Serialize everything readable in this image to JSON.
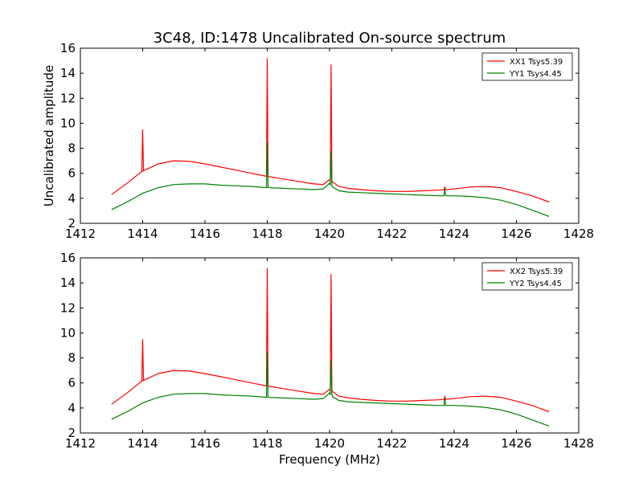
{
  "figure": {
    "title": "3C48, ID:1478 Uncalibrated On-source spectrum",
    "xlabel": "Frequency (MHz)",
    "ylabel": "Uncalibrated amplitude"
  },
  "colors": {
    "xx": "#ff0000",
    "yy": "#007f00"
  },
  "chart_data": [
    {
      "type": "line",
      "title": "3C48, ID:1478 Uncalibrated On-source spectrum",
      "xlabel": "",
      "ylabel": "Uncalibrated amplitude",
      "xlim": [
        1412,
        1428
      ],
      "ylim": [
        2,
        16
      ],
      "xticks": [
        1412,
        1414,
        1416,
        1418,
        1420,
        1422,
        1424,
        1426,
        1428
      ],
      "yticks": [
        2,
        4,
        6,
        8,
        10,
        12,
        14,
        16
      ],
      "legend": "top-right",
      "grid": false,
      "series": [
        {
          "name": "XX1 Tsys5.39",
          "color": "#ff0000",
          "x": [
            1413.0,
            1413.5,
            1414.0,
            1414.5,
            1415.0,
            1415.5,
            1416.0,
            1416.5,
            1417.0,
            1417.5,
            1418.0,
            1418.5,
            1419.0,
            1419.5,
            1419.8,
            1420.0,
            1420.1,
            1420.3,
            1420.6,
            1421.0,
            1421.5,
            1422.0,
            1422.5,
            1423.0,
            1423.5,
            1424.0,
            1424.5,
            1425.0,
            1425.5,
            1426.0,
            1426.5,
            1427.05
          ],
          "y": [
            4.3,
            5.2,
            6.2,
            6.75,
            7.0,
            6.95,
            6.75,
            6.5,
            6.25,
            6.0,
            5.75,
            5.55,
            5.35,
            5.15,
            5.1,
            5.5,
            5.3,
            4.95,
            4.8,
            4.7,
            4.6,
            4.55,
            4.55,
            4.6,
            4.65,
            4.75,
            4.9,
            4.95,
            4.85,
            4.55,
            4.2,
            3.7
          ]
        },
        {
          "name": "YY1 Tsys4.45",
          "color": "#007f00",
          "x": [
            1413.0,
            1413.5,
            1414.0,
            1414.5,
            1415.0,
            1415.5,
            1416.0,
            1416.5,
            1417.0,
            1417.5,
            1418.0,
            1418.5,
            1419.0,
            1419.5,
            1419.8,
            1420.0,
            1420.1,
            1420.3,
            1420.6,
            1421.0,
            1421.5,
            1422.0,
            1422.5,
            1423.0,
            1423.5,
            1424.0,
            1424.5,
            1425.0,
            1425.5,
            1426.0,
            1426.5,
            1427.05
          ],
          "y": [
            3.1,
            3.7,
            4.4,
            4.85,
            5.1,
            5.15,
            5.15,
            5.05,
            5.0,
            4.95,
            4.85,
            4.8,
            4.75,
            4.7,
            4.75,
            5.2,
            4.9,
            4.6,
            4.5,
            4.45,
            4.4,
            4.35,
            4.3,
            4.25,
            4.2,
            4.2,
            4.15,
            4.05,
            3.85,
            3.5,
            3.05,
            2.55
          ]
        }
      ],
      "peaks": [
        {
          "series": "XX1 Tsys5.39",
          "x": 1414.0,
          "y": 9.5
        },
        {
          "series": "XX1 Tsys5.39",
          "x": 1418.0,
          "y": 15.2
        },
        {
          "series": "XX1 Tsys5.39",
          "x": 1420.05,
          "y": 14.7
        },
        {
          "series": "XX1 Tsys5.39",
          "x": 1423.7,
          "y": 4.9
        },
        {
          "series": "YY1 Tsys4.45",
          "x": 1418.0,
          "y": 8.5
        },
        {
          "series": "YY1 Tsys4.45",
          "x": 1420.05,
          "y": 7.8
        },
        {
          "series": "YY1 Tsys4.45",
          "x": 1423.7,
          "y": 4.8
        }
      ]
    },
    {
      "type": "line",
      "title": "",
      "xlabel": "Frequency (MHz)",
      "ylabel": "",
      "xlim": [
        1412,
        1428
      ],
      "ylim": [
        2,
        16
      ],
      "xticks": [
        1412,
        1414,
        1416,
        1418,
        1420,
        1422,
        1424,
        1426,
        1428
      ],
      "yticks": [
        2,
        4,
        6,
        8,
        10,
        12,
        14,
        16
      ],
      "legend": "top-right",
      "grid": false,
      "series": [
        {
          "name": "XX2 Tsys5.39",
          "color": "#ff0000",
          "x": [
            1413.0,
            1413.5,
            1414.0,
            1414.5,
            1415.0,
            1415.5,
            1416.0,
            1416.5,
            1417.0,
            1417.5,
            1418.0,
            1418.5,
            1419.0,
            1419.5,
            1419.8,
            1420.0,
            1420.1,
            1420.3,
            1420.6,
            1421.0,
            1421.5,
            1422.0,
            1422.5,
            1423.0,
            1423.5,
            1424.0,
            1424.5,
            1425.0,
            1425.5,
            1426.0,
            1426.5,
            1427.05
          ],
          "y": [
            4.3,
            5.2,
            6.2,
            6.75,
            7.0,
            6.95,
            6.75,
            6.5,
            6.25,
            6.0,
            5.75,
            5.55,
            5.35,
            5.15,
            5.1,
            5.5,
            5.3,
            4.95,
            4.8,
            4.7,
            4.6,
            4.55,
            4.55,
            4.6,
            4.65,
            4.75,
            4.9,
            4.95,
            4.85,
            4.55,
            4.2,
            3.7
          ]
        },
        {
          "name": "YY2 Tsys4.45",
          "color": "#007f00",
          "x": [
            1413.0,
            1413.5,
            1414.0,
            1414.5,
            1415.0,
            1415.5,
            1416.0,
            1416.5,
            1417.0,
            1417.5,
            1418.0,
            1418.5,
            1419.0,
            1419.5,
            1419.8,
            1420.0,
            1420.1,
            1420.3,
            1420.6,
            1421.0,
            1421.5,
            1422.0,
            1422.5,
            1423.0,
            1423.5,
            1424.0,
            1424.5,
            1425.0,
            1425.5,
            1426.0,
            1426.5,
            1427.05
          ],
          "y": [
            3.1,
            3.7,
            4.4,
            4.85,
            5.1,
            5.15,
            5.15,
            5.05,
            5.0,
            4.95,
            4.85,
            4.8,
            4.75,
            4.7,
            4.75,
            5.2,
            4.9,
            4.6,
            4.5,
            4.45,
            4.4,
            4.35,
            4.3,
            4.25,
            4.2,
            4.2,
            4.15,
            4.05,
            3.85,
            3.5,
            3.05,
            2.55
          ]
        }
      ],
      "peaks": [
        {
          "series": "XX2 Tsys5.39",
          "x": 1414.0,
          "y": 9.5
        },
        {
          "series": "XX2 Tsys5.39",
          "x": 1418.0,
          "y": 15.2
        },
        {
          "series": "XX2 Tsys5.39",
          "x": 1420.05,
          "y": 14.7
        },
        {
          "series": "XX2 Tsys5.39",
          "x": 1423.7,
          "y": 4.9
        },
        {
          "series": "YY2 Tsys4.45",
          "x": 1418.0,
          "y": 8.5
        },
        {
          "series": "YY2 Tsys4.45",
          "x": 1420.05,
          "y": 7.8
        },
        {
          "series": "YY2 Tsys4.45",
          "x": 1423.7,
          "y": 4.8
        }
      ]
    }
  ]
}
